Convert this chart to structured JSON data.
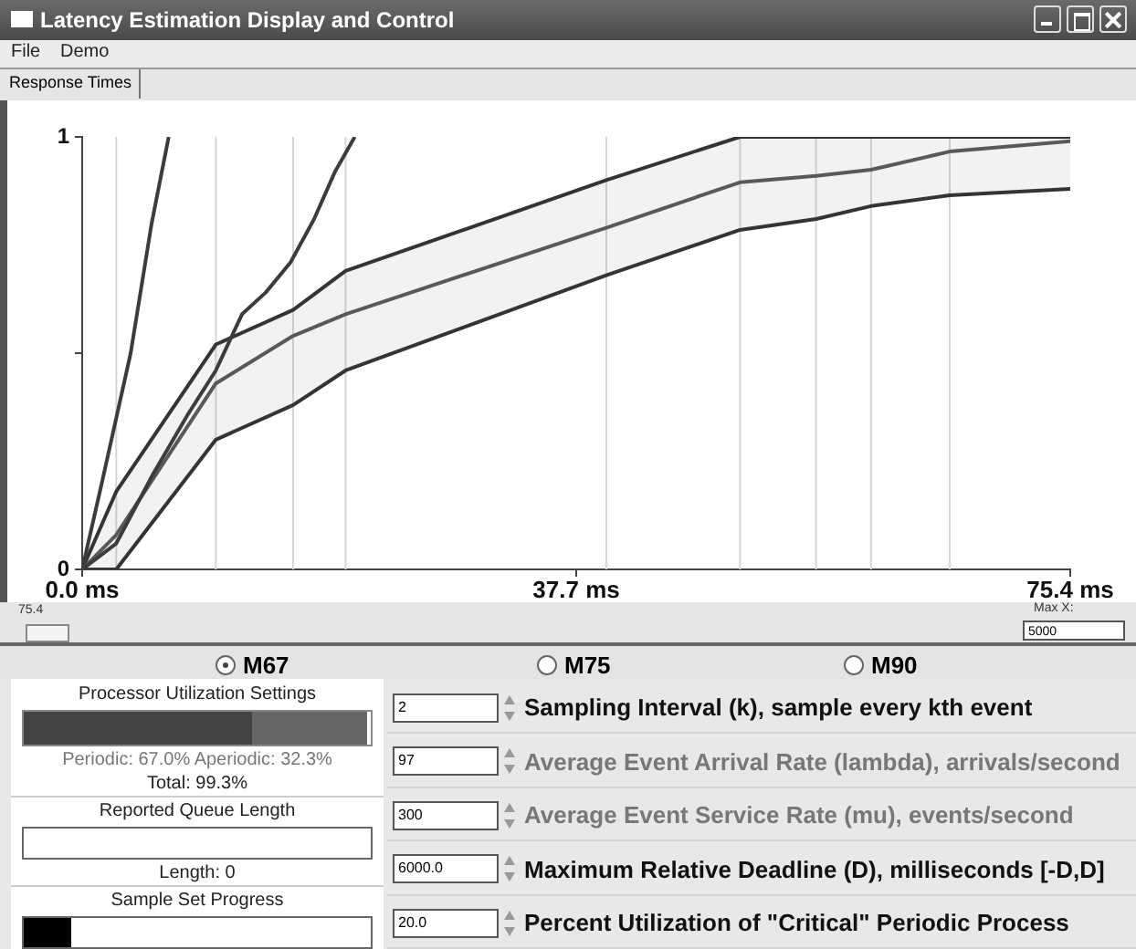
{
  "chart_data": {
    "type": "line",
    "title": "Latency Estimation Display and Control",
    "xlim": [
      0,
      75.4
    ],
    "ylim": [
      0,
      1
    ],
    "xticks": [
      {
        "value": 0,
        "label": "0.0 ms"
      },
      {
        "value": 37.7,
        "label": "37.7 ms"
      },
      {
        "value": 75.4,
        "label": "75.4 ms"
      }
    ],
    "yticks": [
      0,
      {
        "value": 0.5,
        "label": null
      },
      1
    ],
    "grid": false,
    "legend": false,
    "marker": "none",
    "series": [
      {
        "color": "#3c3c3c",
        "x": [
          0,
          1.5,
          3.7,
          5.3,
          6.6
        ],
        "values": [
          0,
          0.2,
          0.5,
          0.8,
          1
        ]
      },
      {
        "color": "#3c3c3c",
        "x": [
          0,
          2.6,
          5.4,
          8.1,
          10.2,
          12.2,
          14.0,
          15.9,
          17.7,
          19.3,
          20.8
        ],
        "values": [
          0,
          0.06,
          0.22,
          0.36,
          0.46,
          0.59,
          0.64,
          0.71,
          0.81,
          0.92,
          1
        ]
      },
      {
        "color": "#5a5a5a",
        "x": [
          0,
          2.6,
          10.2,
          16.1,
          20.1,
          40.0,
          50.2,
          56.0,
          60.2,
          66.2,
          75.4
        ],
        "values": [
          0,
          0.08,
          0.43,
          0.54,
          0.59,
          0.79,
          0.895,
          0.91,
          0.924,
          0.966,
          0.99
        ],
        "lower": [
          0,
          0,
          0.3,
          0.38,
          0.46,
          0.68,
          0.785,
          0.81,
          0.84,
          0.865,
          0.88
        ],
        "upper": [
          0,
          0.18,
          0.52,
          0.6,
          0.69,
          0.9,
          1,
          1,
          1,
          1,
          1
        ]
      },
      {
        "color": "#333333",
        "x": [
          0,
          2.6,
          10.2,
          16.1,
          20.1,
          40.0,
          50.2,
          56.0,
          60.2,
          66.2,
          75.4
        ],
        "values": [
          0,
          0,
          0.3,
          0.38,
          0.46,
          0.68,
          0.785,
          0.81,
          0.84,
          0.865,
          0.88
        ]
      },
      {
        "color": "#333333",
        "x": [
          0,
          2.6,
          10.2,
          16.1,
          20.1,
          40.0,
          50.2,
          56.0,
          60.2,
          66.2,
          75.4
        ],
        "values": [
          0,
          0.18,
          0.52,
          0.6,
          0.69,
          0.9,
          1,
          1,
          1,
          1,
          1
        ]
      }
    ],
    "ref_lines": [
      {
        "axis": "x",
        "value": 2.6,
        "color": "#d6d6d6"
      },
      {
        "axis": "x",
        "value": 10.2,
        "color": "#d6d6d6"
      },
      {
        "axis": "x",
        "value": 16.1,
        "color": "#d6d6d6"
      },
      {
        "axis": "x",
        "value": 20.1,
        "color": "#d6d6d6"
      },
      {
        "axis": "x",
        "value": 40.0,
        "color": "#d6d6d6"
      },
      {
        "axis": "x",
        "value": 50.2,
        "color": "#d6d6d6"
      },
      {
        "axis": "x",
        "value": 56.0,
        "color": "#d6d6d6"
      },
      {
        "axis": "x",
        "value": 60.2,
        "color": "#d6d6d6"
      },
      {
        "axis": "x",
        "value": 66.2,
        "color": "#d6d6d6"
      }
    ],
    "annotations": [
      "File",
      "Demo",
      "Response Times",
      "75.4",
      "Max X:",
      "5000",
      "M67",
      "M75",
      "M90",
      "Processor Utilization Settings",
      "Periodic:  67.0% Aperiodic:  32.3%",
      "Total:  99.3%",
      "Reported Queue Length",
      "Length:  0",
      "Sample Set Progress",
      "2",
      "Sampling Interval (k), sample every kth event",
      "97",
      "Average Event Arrival Rate (lambda), arrivals/second",
      "300",
      "Average Event Service Rate (mu), events/second",
      "6000.0",
      "Maximum Relative Deadline (D), milliseconds [-D,D]",
      "20.0",
      "Percent Utilization of \"Critical\" Periodic Process"
    ]
  }
}
